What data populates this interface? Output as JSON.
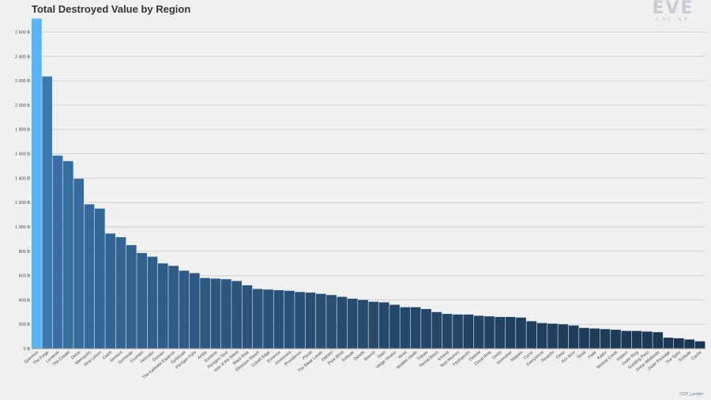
{
  "credit": "CCP_Larrikin",
  "logo": {
    "main": "EVE",
    "sub": "ONLINE"
  },
  "colors": {
    "top": "#5ab4f2",
    "high": "#3d7ab1",
    "low": "#1b3652",
    "grid": "#cfcfcf",
    "axis": "#444444"
  },
  "chart_data": {
    "type": "bar",
    "title": "Total Destroyed Value by Region",
    "xlabel": "",
    "ylabel": "",
    "ylim": [
      0,
      2720
    ],
    "grid": true,
    "yticks": [
      0,
      200,
      400,
      600,
      800,
      1000,
      1200,
      1400,
      1600,
      1800,
      2000,
      2200,
      2400,
      2600
    ],
    "ytick_labels": [
      "0 B",
      "200 B",
      "400 B",
      "600 B",
      "800 B",
      "1 000 B",
      "1 200 B",
      "1 400 B",
      "1 600 B",
      "1 800 B",
      "2 000 B",
      "2 200 B",
      "2 400 B",
      "2 600 B"
    ],
    "categories": [
      "Querious",
      "The Forge",
      "Lonetrek",
      "The Citadel",
      "Delve",
      "Metropolis",
      "Sinq Laison",
      "Catch",
      "Genesis",
      "Geminate",
      "Fountain",
      "Heimatar",
      "Domain",
      "The Kalevala Expanse",
      "Syndicate",
      "Perrigen Falls",
      "Aridia",
      "Esoteria",
      "Paragon Soul",
      "Vale of the Silent",
      "Black Rise",
      "Etherium Reach",
      "Cobalt Edge",
      "Essence",
      "Immensea",
      "Providence",
      "Placid",
      "The Bleak Lands",
      "Deklein",
      "Pure Blind",
      "Solitude",
      "Derelik",
      "Branch",
      "Stain",
      "Verge Vendor",
      "Venal",
      "Molden Heath",
      "Tribute",
      "Period Basis",
      "Khanid",
      "Tash-Murkon",
      "Feythabolis",
      "Detorid",
      "Cloud Ring",
      "Omist",
      "Insmother",
      "Malpais",
      "Curse",
      "Everyshore",
      "Tenerifis",
      "Oasa",
      "Kor-Azor",
      "Tenal",
      "Fade",
      "Kador",
      "Wicked Creek",
      "Impass",
      "Outer Ring",
      "Scalding Pass",
      "Great Wildlands",
      "Outer Passage",
      "The Spire",
      "Solitude",
      "Cache"
    ],
    "values": [
      2710,
      2235,
      1585,
      1540,
      1395,
      1185,
      1150,
      945,
      915,
      850,
      785,
      755,
      700,
      680,
      640,
      620,
      580,
      575,
      570,
      555,
      520,
      490,
      485,
      480,
      475,
      465,
      460,
      450,
      440,
      425,
      410,
      400,
      385,
      380,
      360,
      340,
      340,
      325,
      300,
      285,
      280,
      280,
      270,
      265,
      260,
      260,
      255,
      225,
      210,
      205,
      200,
      190,
      170,
      165,
      160,
      155,
      145,
      145,
      140,
      135,
      90,
      85,
      75,
      60
    ]
  }
}
